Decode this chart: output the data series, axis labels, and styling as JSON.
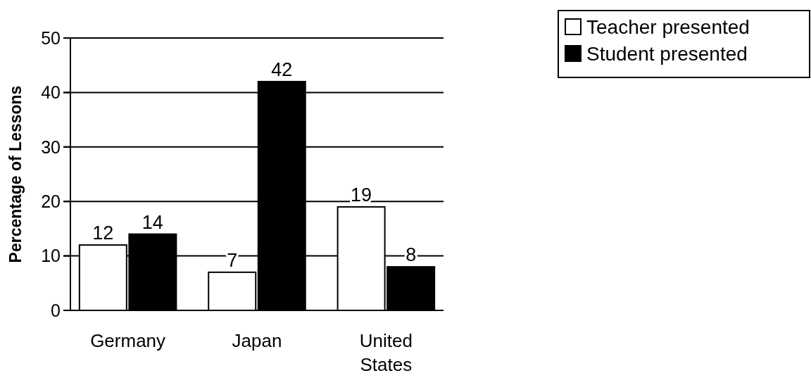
{
  "chart_data": {
    "type": "bar",
    "ylabel": "Percentage of Lessons",
    "categories": [
      "Germany",
      "Japan",
      "United States"
    ],
    "series": [
      {
        "name": "Teacher presented",
        "color": "#ffffff",
        "values": [
          12,
          7,
          19
        ]
      },
      {
        "name": "Student presented",
        "color": "#000000",
        "values": [
          14,
          42,
          8
        ]
      }
    ],
    "ylim": [
      0,
      50
    ],
    "yticks": [
      0,
      10,
      20,
      30,
      40,
      50
    ],
    "grid": "y",
    "legend": "top right",
    "data_labels": true
  }
}
